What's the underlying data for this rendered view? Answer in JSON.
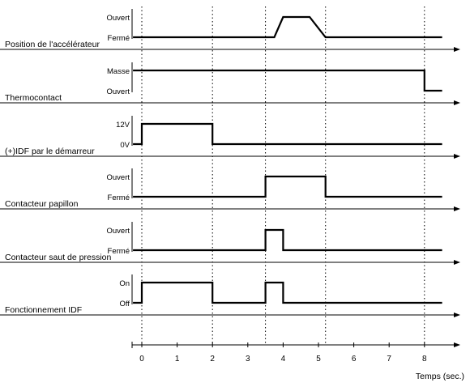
{
  "time_axis": {
    "title": "Temps (sec.)",
    "ticks": [
      0,
      1,
      2,
      3,
      4,
      5,
      6,
      7,
      8
    ],
    "range": [
      -0.25,
      9.0
    ]
  },
  "guide_times": [
    0,
    2,
    3.5,
    5.2,
    8
  ],
  "signals": [
    {
      "id": "accelerateur",
      "label": "Position de l'accélérateur",
      "high_label": "Ouvert",
      "low_label": "Fermé",
      "points": [
        [
          -0.25,
          0
        ],
        [
          3.75,
          0
        ],
        [
          4.0,
          1
        ],
        [
          4.75,
          1
        ],
        [
          5.2,
          0
        ],
        [
          8.5,
          0
        ]
      ]
    },
    {
      "id": "thermocontact",
      "label": "Thermocontact",
      "high_label": "Masse",
      "low_label": "Ouvert",
      "points": [
        [
          -0.25,
          1
        ],
        [
          8.0,
          1
        ],
        [
          8.0,
          0
        ],
        [
          8.5,
          0
        ]
      ]
    },
    {
      "id": "idf-demarreur",
      "label": "(+)IDF par le démarreur",
      "high_label": "12V",
      "low_label": "0V",
      "points": [
        [
          -0.25,
          0
        ],
        [
          0,
          0
        ],
        [
          0,
          1
        ],
        [
          2,
          1
        ],
        [
          2,
          0
        ],
        [
          8.5,
          0
        ]
      ]
    },
    {
      "id": "contacteur-papillon",
      "label": "Contacteur papillon",
      "high_label": "Ouvert",
      "low_label": "Fermé",
      "points": [
        [
          -0.25,
          0
        ],
        [
          3.5,
          0
        ],
        [
          3.5,
          1
        ],
        [
          5.2,
          1
        ],
        [
          5.2,
          0
        ],
        [
          8.5,
          0
        ]
      ]
    },
    {
      "id": "contacteur-saut-pression",
      "label": "Contacteur saut de pression",
      "high_label": "Ouvert",
      "low_label": "Fermé",
      "points": [
        [
          -0.25,
          0
        ],
        [
          3.5,
          0
        ],
        [
          3.5,
          1
        ],
        [
          4.0,
          1
        ],
        [
          4.0,
          0
        ],
        [
          8.5,
          0
        ]
      ]
    },
    {
      "id": "fonctionnement-idf",
      "label": "Fonctionnement IDF",
      "high_label": "On",
      "low_label": "Off",
      "points": [
        [
          -0.25,
          0
        ],
        [
          0,
          0
        ],
        [
          0,
          1
        ],
        [
          2,
          1
        ],
        [
          2,
          0
        ],
        [
          3.5,
          0
        ],
        [
          3.5,
          1
        ],
        [
          4.0,
          1
        ],
        [
          4.0,
          0
        ],
        [
          8.5,
          0
        ]
      ]
    }
  ]
}
